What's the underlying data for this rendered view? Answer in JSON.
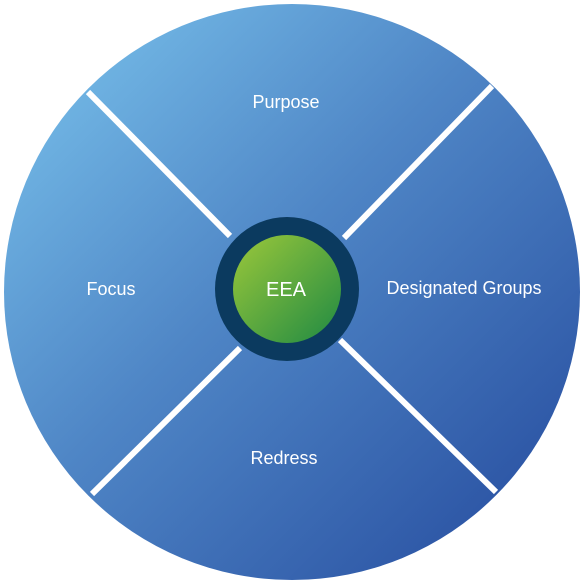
{
  "diagram": {
    "center": {
      "label": "EEA"
    },
    "segments": [
      {
        "id": "top",
        "label": "Purpose"
      },
      {
        "id": "right",
        "label": "Designated Groups"
      },
      {
        "id": "bottom",
        "label": "Redress"
      },
      {
        "id": "left",
        "label": "Focus"
      }
    ]
  },
  "colors": {
    "wheel_light": "#7cc6ee",
    "wheel_mid": "#4f86c6",
    "wheel_dark": "#23489c",
    "divider": "#ffffff",
    "center_ring": "#0b3a5f",
    "center_light": "#9cc83a",
    "center_dark": "#1f8a43",
    "text": "#ffffff"
  }
}
